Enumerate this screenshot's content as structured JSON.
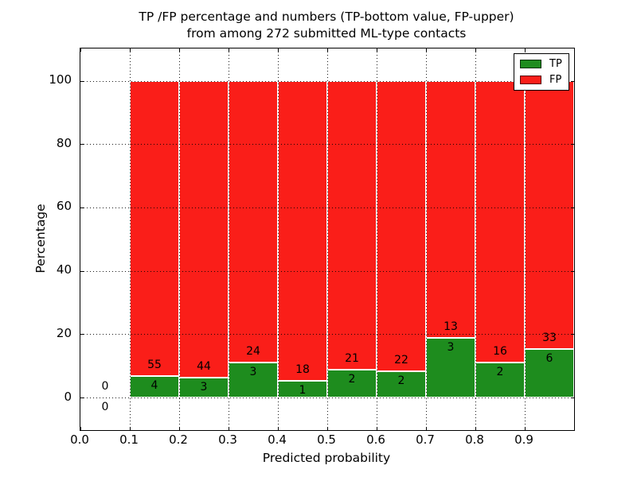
{
  "title": {
    "line1": "TP /FP percentage and numbers (TP-bottom value, FP-upper)",
    "line2": "from among 272 submitted ML-type contacts"
  },
  "axes": {
    "xlabel": "Predicted probability",
    "ylabel": "Percentage",
    "xtick_labels": [
      "0.0",
      "0.1",
      "0.2",
      "0.3",
      "0.4",
      "0.5",
      "0.6",
      "0.7",
      "0.8",
      "0.9"
    ],
    "ytick_labels": [
      "0",
      "20",
      "40",
      "60",
      "80",
      "100"
    ]
  },
  "legend": {
    "position": "upper right",
    "entries": [
      {
        "label": "TP",
        "color": "#1e8c1e"
      },
      {
        "label": "FP",
        "color": "#fa1e19"
      }
    ]
  },
  "chart_data": {
    "type": "bar",
    "stacked": true,
    "normalized_to_percent": true,
    "title": "TP /FP percentage and numbers (TP-bottom value, FP-upper) from among 272 submitted ML-type contacts",
    "total_contacts": 272,
    "xlabel": "Predicted probability",
    "ylabel": "Percentage",
    "xlim": [
      0.0,
      1.0
    ],
    "ylim": [
      -10.3,
      110.2
    ],
    "bin_width": 0.1,
    "xticks": [
      0.0,
      0.1,
      0.2,
      0.3,
      0.4,
      0.5,
      0.6,
      0.7,
      0.8,
      0.9
    ],
    "yticks": [
      0,
      20,
      40,
      60,
      80,
      100
    ],
    "grid": {
      "visible": true,
      "style": "dotted",
      "color": "#000000",
      "above_bars": true
    },
    "grid_x_values": [
      0.1,
      0.2,
      0.3,
      0.4,
      0.5,
      0.6,
      0.7,
      0.8,
      0.9
    ],
    "series": [
      {
        "name": "TP",
        "color": "#1e8c1e"
      },
      {
        "name": "FP",
        "color": "#fa1e19"
      }
    ],
    "bins": [
      {
        "x0": 0.0,
        "tp_count": 0,
        "fp_count": 0,
        "tp_pct": 0.0,
        "fp_pct": 0.0
      },
      {
        "x0": 0.1,
        "tp_count": 4,
        "fp_count": 55,
        "tp_pct": 6.78,
        "fp_pct": 93.22
      },
      {
        "x0": 0.2,
        "tp_count": 3,
        "fp_count": 44,
        "tp_pct": 6.38,
        "fp_pct": 93.62
      },
      {
        "x0": 0.3,
        "tp_count": 3,
        "fp_count": 24,
        "tp_pct": 11.11,
        "fp_pct": 88.89
      },
      {
        "x0": 0.4,
        "tp_count": 1,
        "fp_count": 18,
        "tp_pct": 5.26,
        "fp_pct": 94.74
      },
      {
        "x0": 0.5,
        "tp_count": 2,
        "fp_count": 21,
        "tp_pct": 8.7,
        "fp_pct": 91.3
      },
      {
        "x0": 0.6,
        "tp_count": 2,
        "fp_count": 22,
        "tp_pct": 8.33,
        "fp_pct": 91.67
      },
      {
        "x0": 0.7,
        "tp_count": 3,
        "fp_count": 13,
        "tp_pct": 18.75,
        "fp_pct": 81.25
      },
      {
        "x0": 0.8,
        "tp_count": 2,
        "fp_count": 16,
        "tp_pct": 11.11,
        "fp_pct": 88.89
      },
      {
        "x0": 0.9,
        "tp_count": 6,
        "fp_count": 33,
        "tp_pct": 15.38,
        "fp_pct": 84.62
      }
    ]
  }
}
